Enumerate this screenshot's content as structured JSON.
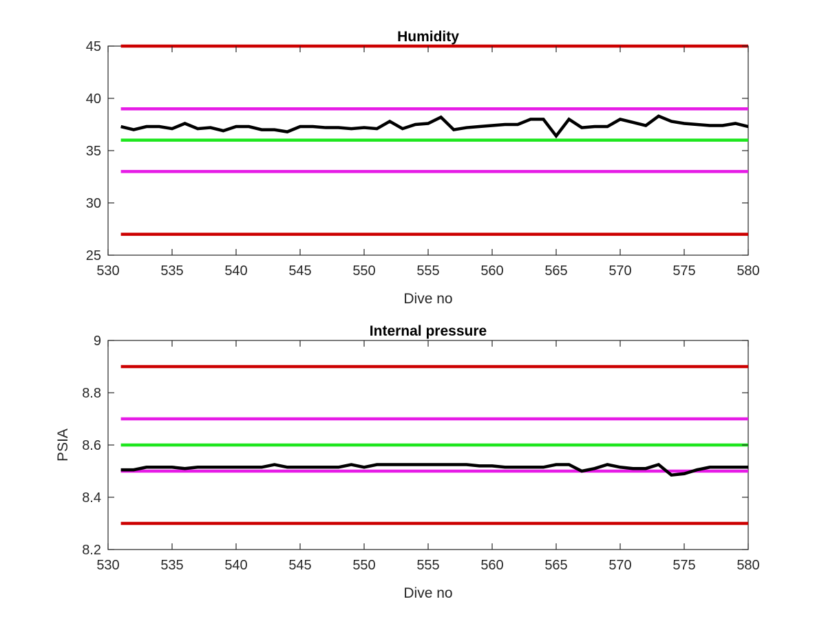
{
  "chart_data": [
    {
      "type": "line",
      "title": "Humidity",
      "xlabel": "Dive no",
      "ylabel": "",
      "xlim": [
        530,
        580
      ],
      "ylim": [
        25,
        45
      ],
      "xticks": [
        530,
        535,
        540,
        545,
        550,
        555,
        560,
        565,
        570,
        575,
        580
      ],
      "yticks": [
        25,
        30,
        35,
        40,
        45
      ],
      "grid": false,
      "reference_lines": [
        {
          "y": 45,
          "color": "#cc0000"
        },
        {
          "y": 39,
          "color": "#e61ce6"
        },
        {
          "y": 36,
          "color": "#1ee61e"
        },
        {
          "y": 33,
          "color": "#e61ce6"
        },
        {
          "y": 27,
          "color": "#cc0000"
        }
      ],
      "series": [
        {
          "color": "#000000",
          "x": [
            531,
            532,
            533,
            534,
            535,
            536,
            537,
            538,
            539,
            540,
            541,
            542,
            543,
            544,
            545,
            546,
            547,
            548,
            549,
            550,
            551,
            552,
            553,
            554,
            555,
            556,
            557,
            558,
            559,
            560,
            561,
            562,
            563,
            564,
            565,
            566,
            567,
            568,
            569,
            570,
            571,
            572,
            573,
            574,
            575,
            576,
            577,
            578,
            579,
            580
          ],
          "y": [
            37.3,
            37.0,
            37.3,
            37.3,
            37.1,
            37.6,
            37.1,
            37.2,
            36.9,
            37.3,
            37.3,
            37.0,
            37.0,
            36.8,
            37.3,
            37.3,
            37.2,
            37.2,
            37.1,
            37.2,
            37.1,
            37.8,
            37.1,
            37.5,
            37.6,
            38.2,
            37.0,
            37.2,
            37.3,
            37.4,
            37.5,
            37.5,
            38.0,
            38.0,
            36.4,
            38.0,
            37.2,
            37.3,
            37.3,
            38.0,
            37.7,
            37.4,
            38.3,
            37.8,
            37.6,
            37.5,
            37.4,
            37.4,
            37.6,
            37.3
          ]
        }
      ]
    },
    {
      "type": "line",
      "title": "Internal pressure",
      "xlabel": "Dive no",
      "ylabel": "PSIA",
      "xlim": [
        530,
        580
      ],
      "ylim": [
        8.2,
        9.0
      ],
      "xticks": [
        530,
        535,
        540,
        545,
        550,
        555,
        560,
        565,
        570,
        575,
        580
      ],
      "yticks": [
        8.2,
        8.4,
        8.6,
        8.8,
        9
      ],
      "grid": false,
      "reference_lines": [
        {
          "y": 8.9,
          "color": "#cc0000"
        },
        {
          "y": 8.7,
          "color": "#e61ce6"
        },
        {
          "y": 8.6,
          "color": "#1ee61e"
        },
        {
          "y": 8.5,
          "color": "#e61ce6"
        },
        {
          "y": 8.3,
          "color": "#cc0000"
        }
      ],
      "series": [
        {
          "color": "#000000",
          "x": [
            531,
            532,
            533,
            534,
            535,
            536,
            537,
            538,
            539,
            540,
            541,
            542,
            543,
            544,
            545,
            546,
            547,
            548,
            549,
            550,
            551,
            552,
            553,
            554,
            555,
            556,
            557,
            558,
            559,
            560,
            561,
            562,
            563,
            564,
            565,
            566,
            567,
            568,
            569,
            570,
            571,
            572,
            573,
            574,
            575,
            576,
            577,
            578,
            579,
            580
          ],
          "y": [
            8.505,
            8.505,
            8.515,
            8.515,
            8.515,
            8.51,
            8.515,
            8.515,
            8.515,
            8.515,
            8.515,
            8.515,
            8.525,
            8.515,
            8.515,
            8.515,
            8.515,
            8.515,
            8.525,
            8.515,
            8.525,
            8.525,
            8.525,
            8.525,
            8.525,
            8.525,
            8.525,
            8.525,
            8.52,
            8.52,
            8.515,
            8.515,
            8.515,
            8.515,
            8.525,
            8.525,
            8.5,
            8.51,
            8.525,
            8.515,
            8.51,
            8.51,
            8.525,
            8.485,
            8.49,
            8.505,
            8.515,
            8.515,
            8.515,
            8.515
          ]
        }
      ]
    }
  ]
}
